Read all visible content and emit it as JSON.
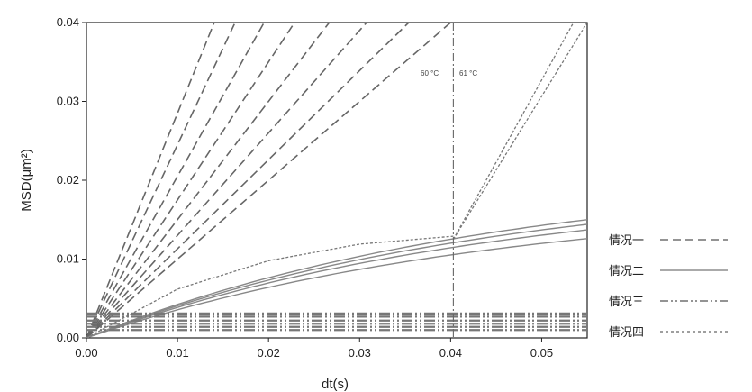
{
  "chart_data": {
    "type": "line",
    "xlabel": "dt(s)",
    "ylabel": "MSD(μm²)",
    "xlim": [
      0,
      0.055
    ],
    "ylim": [
      0,
      0.04
    ],
    "x_ticks": [
      "0.00",
      "0.01",
      "0.02",
      "0.03",
      "0.04",
      "0.05"
    ],
    "y_ticks": [
      "0.00",
      "0.01",
      "0.02",
      "0.03",
      "0.04"
    ],
    "annotations": [
      {
        "text": "60 °C",
        "x": 0.038,
        "y": 0.0335
      },
      {
        "text": "61 °C",
        "x": 0.0425,
        "y": 0.0335
      }
    ],
    "vertical_line": {
      "x": 0.0403
    },
    "legend": [
      "情况一",
      "情况二",
      "情况三",
      "情况四"
    ],
    "series": [
      {
        "name": "情况一",
        "style": "dashed",
        "color": "#666666",
        "lines": [
          {
            "slope": 2.85
          },
          {
            "slope": 2.45
          },
          {
            "slope": 2.05
          },
          {
            "slope": 1.75
          },
          {
            "slope": 1.5
          },
          {
            "slope": 1.3
          },
          {
            "slope": 1.13
          },
          {
            "slope": 1.0
          }
        ]
      },
      {
        "name": "情况二",
        "style": "solid",
        "color": "#888888",
        "lines": [
          {
            "y_at_004": 0.0128,
            "y_at_0055": 0.015
          },
          {
            "y_at_004": 0.0121,
            "y_at_0055": 0.0144
          },
          {
            "y_at_004": 0.0115,
            "y_at_0055": 0.0137
          },
          {
            "y_at_004": 0.011,
            "y_at_0055": 0.0126
          }
        ]
      },
      {
        "name": "情况三",
        "style": "dashdotdot",
        "color": "#777777",
        "levels": [
          0.0031,
          0.0027,
          0.0022,
          0.0018,
          0.0014,
          0.001
        ]
      },
      {
        "name": "情况四",
        "style": "dotted",
        "color": "#777777",
        "lines": [
          {
            "points": [
              [
                0,
                0
              ],
              [
                0.01,
                0.0062
              ],
              [
                0.02,
                0.0098
              ],
              [
                0.03,
                0.0119
              ],
              [
                0.0403,
                0.0129
              ]
            ]
          },
          {
            "points": [
              [
                0.0403,
                0.0125
              ],
              [
                0.055,
                0.04
              ]
            ]
          },
          {
            "points": [
              [
                0.0403,
                0.0125
              ],
              [
                0.0535,
                0.04
              ]
            ]
          }
        ]
      }
    ]
  }
}
